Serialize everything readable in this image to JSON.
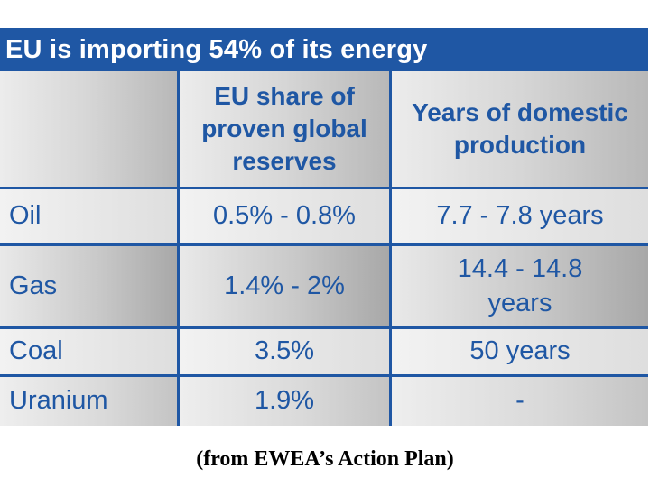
{
  "table": {
    "title": "EU is importing 54% of its energy",
    "headers": [
      "",
      "EU share of proven global reserves",
      "Years of domestic production"
    ],
    "rows": [
      {
        "resource": "Oil",
        "share": "0.5% - 0.8%",
        "years": "7.7 - 7.8 years"
      },
      {
        "resource": "Gas",
        "share": "1.4% - 2%",
        "years": "14.4 - 14.8 years"
      },
      {
        "resource": "Coal",
        "share": "3.5%",
        "years": "50 years"
      },
      {
        "resource": "Uranium",
        "share": "1.9%",
        "years": "-"
      }
    ]
  },
  "caption": "(from EWEA’s Action Plan)",
  "colors": {
    "accent": "#1f57a4",
    "background": "#ffffff"
  }
}
